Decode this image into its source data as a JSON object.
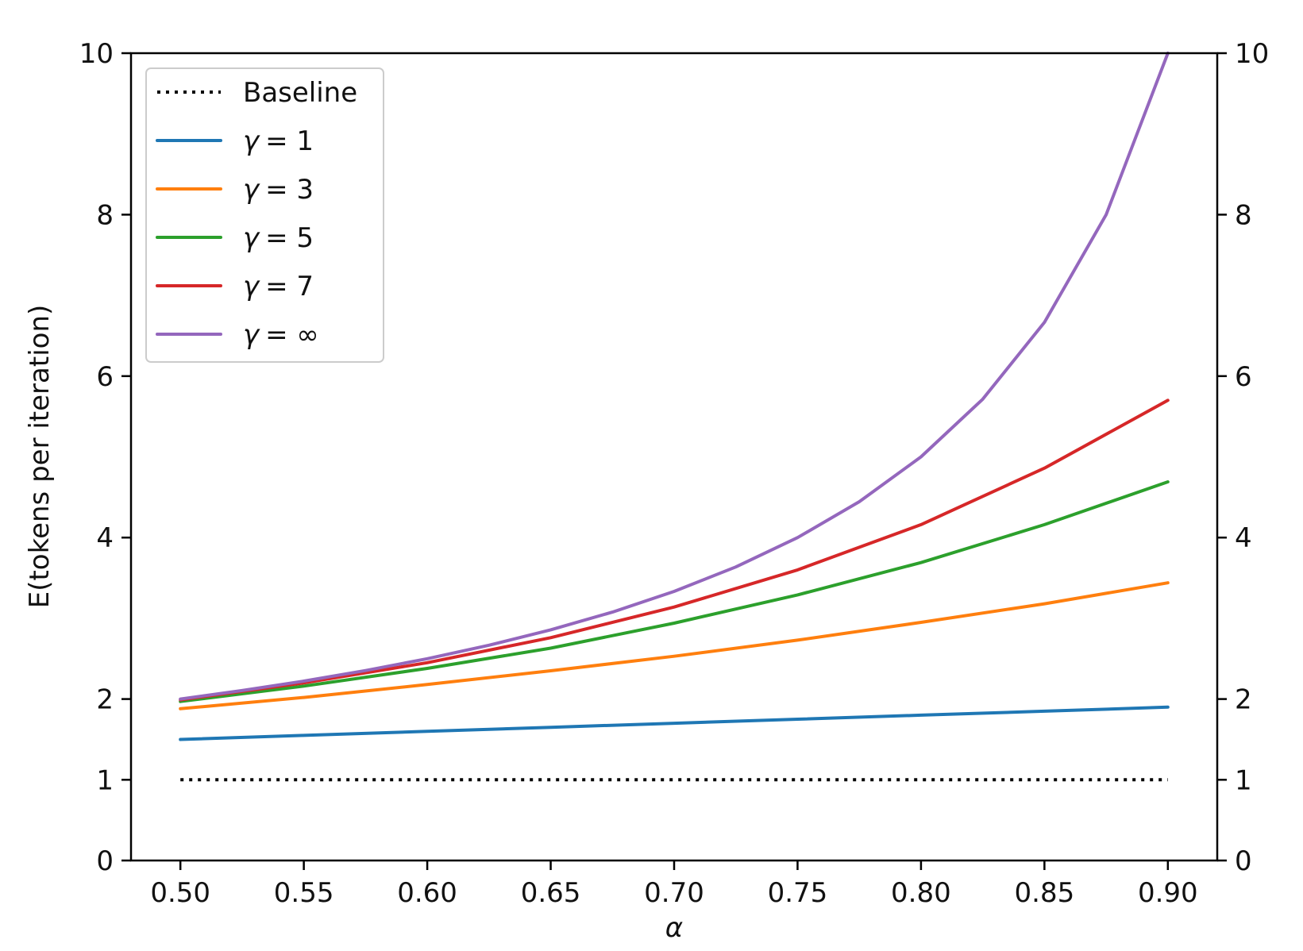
{
  "chart_data": {
    "type": "line",
    "title": "",
    "xlabel": "α",
    "ylabel": "E(tokens per iteration)",
    "xlim": [
      0.48,
      0.92
    ],
    "ylim": [
      0,
      10
    ],
    "x_ticks": [
      0.5,
      0.55,
      0.6,
      0.65,
      0.7,
      0.75,
      0.8,
      0.85,
      0.9
    ],
    "x_tick_labels": [
      "0.50",
      "0.55",
      "0.60",
      "0.65",
      "0.70",
      "0.75",
      "0.80",
      "0.85",
      "0.90"
    ],
    "y_ticks": [
      0,
      1,
      2,
      4,
      6,
      8,
      10
    ],
    "y_tick_labels": [
      "0",
      "1",
      "2",
      "4",
      "6",
      "8",
      "10"
    ],
    "right_y_axis": true,
    "grid": false,
    "legend_position": "top-left",
    "series": [
      {
        "name": "Baseline",
        "legend_label": "Baseline",
        "color": "#000000",
        "style": "dotted",
        "x": [
          0.5,
          0.55,
          0.6,
          0.65,
          0.7,
          0.75,
          0.8,
          0.85,
          0.9
        ],
        "y": [
          1,
          1,
          1,
          1,
          1,
          1,
          1,
          1,
          1
        ]
      },
      {
        "name": "gamma=1",
        "legend_symbol": "γ",
        "legend_value": "= 1",
        "color": "#1f77b4",
        "style": "solid",
        "x": [
          0.5,
          0.55,
          0.6,
          0.65,
          0.7,
          0.75,
          0.8,
          0.85,
          0.9
        ],
        "y": [
          1.5,
          1.55,
          1.6,
          1.65,
          1.7,
          1.75,
          1.8,
          1.85,
          1.9
        ]
      },
      {
        "name": "gamma=3",
        "legend_symbol": "γ",
        "legend_value": "= 3",
        "color": "#ff7f0e",
        "style": "solid",
        "x": [
          0.5,
          0.55,
          0.6,
          0.65,
          0.7,
          0.75,
          0.8,
          0.85,
          0.9
        ],
        "y": [
          1.88,
          2.02,
          2.18,
          2.35,
          2.53,
          2.73,
          2.95,
          3.18,
          3.44
        ]
      },
      {
        "name": "gamma=5",
        "legend_symbol": "γ",
        "legend_value": "= 5",
        "color": "#2ca02c",
        "style": "solid",
        "x": [
          0.5,
          0.55,
          0.6,
          0.65,
          0.7,
          0.75,
          0.8,
          0.85,
          0.9
        ],
        "y": [
          1.97,
          2.16,
          2.38,
          2.63,
          2.94,
          3.29,
          3.69,
          4.16,
          4.69
        ]
      },
      {
        "name": "gamma=7",
        "legend_symbol": "γ",
        "legend_value": "= 7",
        "color": "#d62728",
        "style": "solid",
        "x": [
          0.5,
          0.55,
          0.6,
          0.65,
          0.7,
          0.75,
          0.8,
          0.85,
          0.9
        ],
        "y": [
          1.99,
          2.2,
          2.45,
          2.76,
          3.14,
          3.6,
          4.16,
          4.86,
          5.7
        ]
      },
      {
        "name": "gamma=inf",
        "legend_symbol": "γ",
        "legend_value": "= ∞",
        "color": "#9467bd",
        "style": "solid",
        "x": [
          0.5,
          0.525,
          0.55,
          0.575,
          0.6,
          0.625,
          0.65,
          0.675,
          0.7,
          0.725,
          0.75,
          0.775,
          0.8,
          0.825,
          0.85,
          0.875,
          0.9
        ],
        "y": [
          2.0,
          2.105,
          2.222,
          2.353,
          2.5,
          2.667,
          2.857,
          3.077,
          3.333,
          3.636,
          4.0,
          4.444,
          5.0,
          5.714,
          6.667,
          8.0,
          10.0
        ]
      }
    ]
  }
}
